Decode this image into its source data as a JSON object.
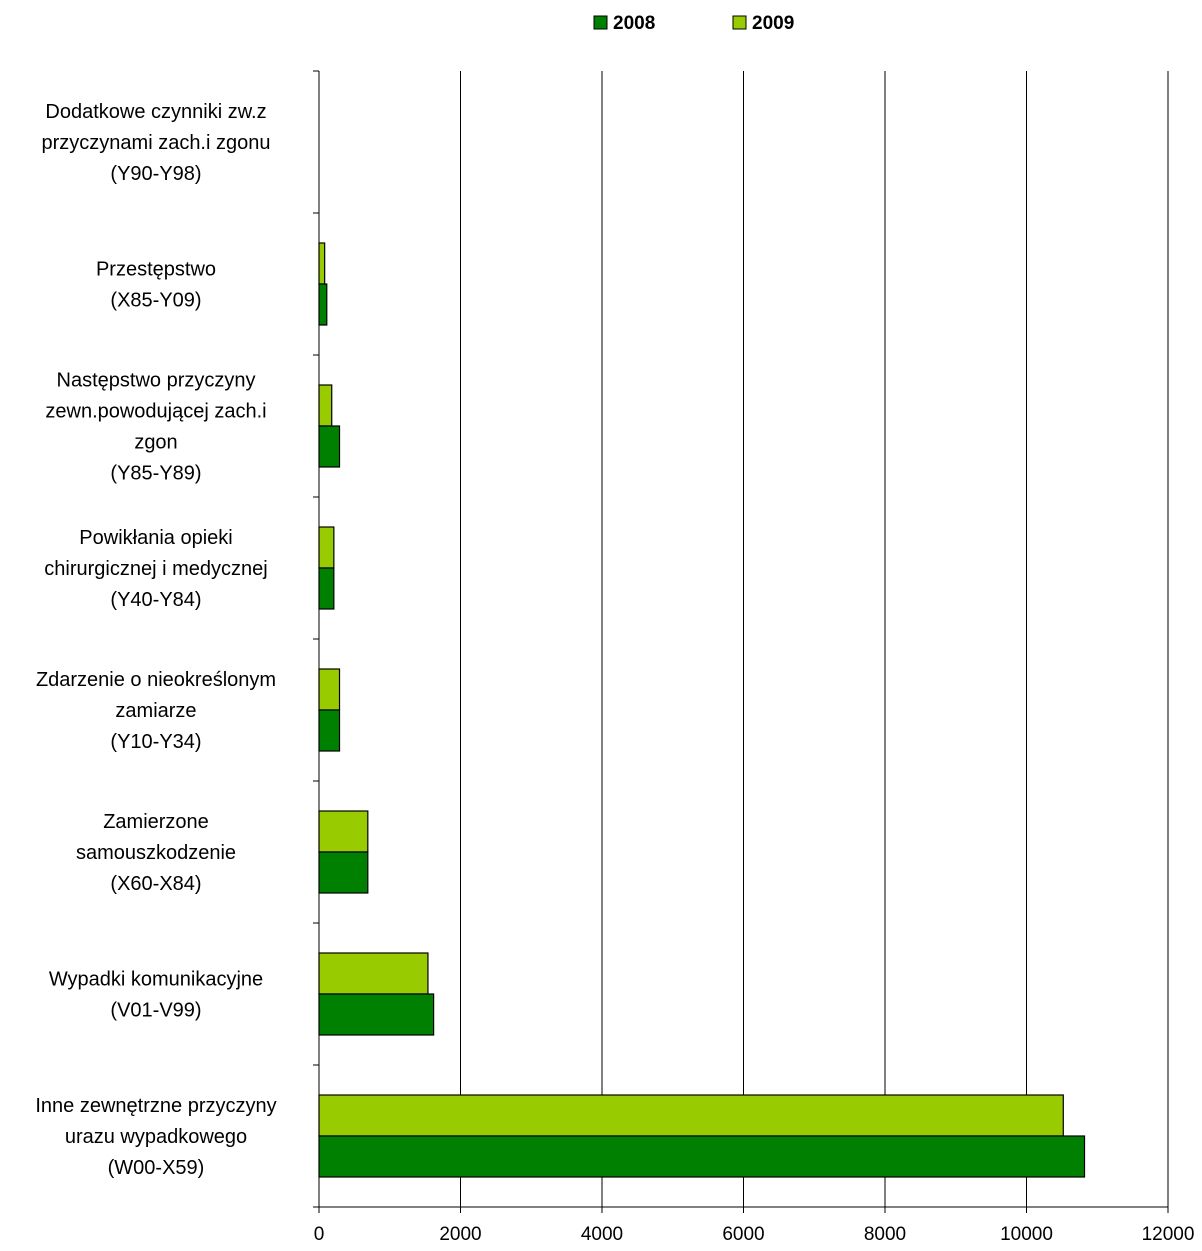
{
  "chart_data": {
    "type": "bar",
    "orientation": "horizontal",
    "categories": [
      [
        "Dodatkowe czynniki zw.z",
        "przyczynami zach.i zgonu",
        "(Y90-Y98)"
      ],
      [
        "Przestępstwo",
        "(X85-Y09)"
      ],
      [
        "Następstwo przyczyny",
        "zewn.powodującej zach.i",
        "zgon",
        "(Y85-Y89)"
      ],
      [
        "Powikłania opieki",
        "chirurgicznej i medycznej",
        "(Y40-Y84)"
      ],
      [
        "Zdarzenie o nieokreślonym",
        "zamiarze",
        "(Y10-Y34)"
      ],
      [
        "Zamierzone",
        "samouszkodzenie",
        "(X60-X84)"
      ],
      [
        "Wypadki komunikacyjne",
        "(V01-V99)"
      ],
      [
        "Inne zewnętrzne przyczyny",
        "urazu wypadkowego",
        "(W00-X59)"
      ]
    ],
    "series": [
      {
        "name": "2008",
        "color": "#008000",
        "values": [
          0,
          110,
          290,
          210,
          290,
          690,
          1620,
          10820
        ]
      },
      {
        "name": "2009",
        "color": "#99cc00",
        "values": [
          0,
          80,
          180,
          210,
          290,
          690,
          1540,
          10520
        ]
      }
    ],
    "xlim": [
      0,
      12000
    ],
    "xticks": [
      "0",
      "2000",
      "4000",
      "6000",
      "8000",
      "10000",
      "12000"
    ],
    "grid": "vertical",
    "legend": "top-center"
  }
}
